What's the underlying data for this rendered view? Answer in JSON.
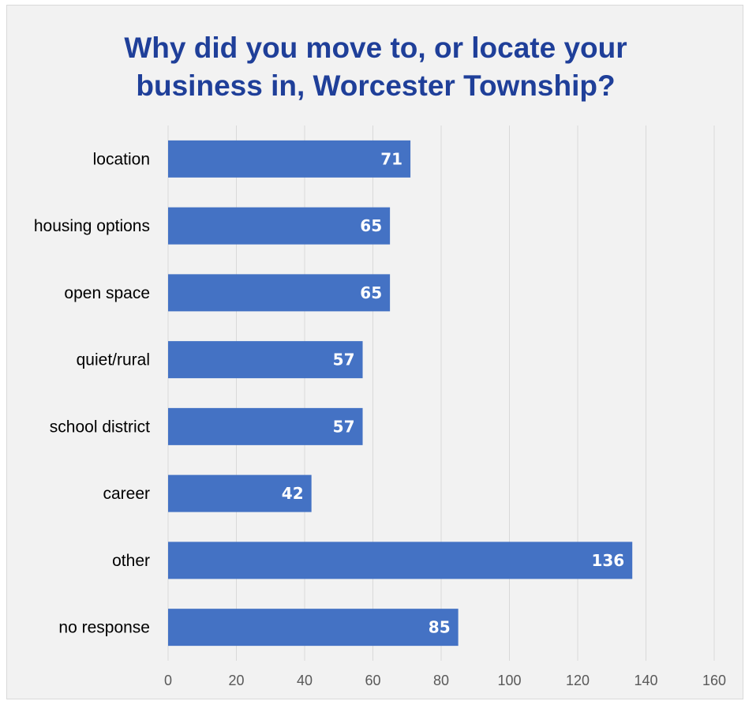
{
  "colors": {
    "bar": "#4472c4",
    "title": "#1f3f99",
    "grid": "#d9d9d9",
    "background": "#f2f2f2"
  },
  "chart_data": {
    "type": "bar",
    "orientation": "horizontal",
    "title_lines": [
      "Why did you move to, or locate your",
      "business in, Worcester Township?"
    ],
    "categories": [
      "location",
      "housing options",
      "open space",
      "quiet/rural",
      "school district",
      "career",
      "other",
      "no response"
    ],
    "values": [
      71,
      65,
      65,
      57,
      57,
      42,
      136,
      85
    ],
    "xlim": [
      0,
      160
    ],
    "xticks": [
      0,
      20,
      40,
      60,
      80,
      100,
      120,
      140,
      160
    ],
    "grid": true,
    "legend": "none",
    "data_labels": true
  }
}
